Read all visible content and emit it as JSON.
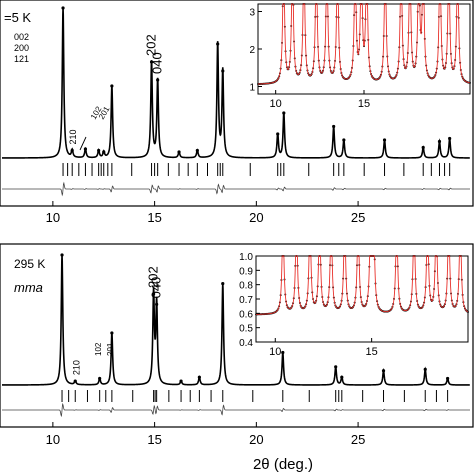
{
  "figure": {
    "xlabel": "2θ (deg.)"
  },
  "chart_data": [
    {
      "type": "line",
      "panel": "top",
      "temperature_label": "=5 K",
      "xlim": [
        7.5,
        30.5
      ],
      "x_ticks": [
        10,
        15,
        20,
        25
      ],
      "x_tick_labels": [
        "10",
        "15",
        "20",
        "25"
      ],
      "grid": false,
      "peaks": [
        {
          "x": 10.5,
          "h": 1.0,
          "label": "",
          "rot": false
        },
        {
          "x": 10.95,
          "h": 0.05,
          "label": "210",
          "rot": true
        },
        {
          "x": 11.6,
          "h": 0.06,
          "label": "",
          "rot": false
        },
        {
          "x": 12.25,
          "h": 0.05,
          "label": "",
          "rot": false
        },
        {
          "x": 12.5,
          "h": 0.04,
          "label": "",
          "rot": false
        },
        {
          "x": 12.9,
          "h": 0.48,
          "label": "",
          "rot": false
        },
        {
          "x": 14.85,
          "h": 0.64,
          "label": "202",
          "rot": true
        },
        {
          "x": 15.15,
          "h": 0.52,
          "label": "040",
          "rot": true
        },
        {
          "x": 16.2,
          "h": 0.04,
          "label": "",
          "rot": false
        },
        {
          "x": 17.1,
          "h": 0.05,
          "label": "",
          "rot": false
        },
        {
          "x": 18.1,
          "h": 0.76,
          "label": "",
          "rot": false
        },
        {
          "x": 18.35,
          "h": 0.58,
          "label": "",
          "rot": false
        },
        {
          "x": 21.05,
          "h": 0.16,
          "label": "",
          "rot": false
        },
        {
          "x": 21.35,
          "h": 0.3,
          "label": "",
          "rot": false
        },
        {
          "x": 23.8,
          "h": 0.21,
          "label": "",
          "rot": false
        },
        {
          "x": 24.3,
          "h": 0.12,
          "label": "",
          "rot": false
        },
        {
          "x": 26.3,
          "h": 0.12,
          "label": "",
          "rot": false
        },
        {
          "x": 28.2,
          "h": 0.07,
          "label": "",
          "rot": false
        },
        {
          "x": 29.0,
          "h": 0.11,
          "label": "",
          "rot": false
        },
        {
          "x": 29.5,
          "h": 0.13,
          "label": "",
          "rot": false
        }
      ],
      "stacked_label": [
        "002",
        "200",
        "121"
      ],
      "arrow_label": [
        "102",
        "201"
      ],
      "arrow_target_x": 11.6,
      "inset": {
        "xlim": [
          9,
          21
        ],
        "ylim": [
          0.8,
          3.2
        ],
        "x_ticks": [
          10,
          15
        ],
        "x_tick_labels": [
          "10",
          "15"
        ],
        "y_ticks": [
          1,
          2,
          3
        ],
        "y_tick_labels": [
          "1",
          "2",
          "3"
        ],
        "baseline": 1.05,
        "peaks": [
          10.45,
          10.95,
          11.6,
          12.3,
          12.9,
          13.5,
          14.5,
          14.85,
          15.15,
          16.2,
          17.1,
          17.6,
          18.1,
          18.35,
          19.3,
          19.8,
          20.3
        ],
        "colors": {
          "obs": "#111111",
          "calc": "#e8302a"
        }
      }
    },
    {
      "type": "line",
      "panel": "bottom",
      "temperature_label": "295 K",
      "space_group_label": "mma",
      "xlim": [
        7.5,
        30.5
      ],
      "x_ticks": [
        10,
        15,
        20,
        25
      ],
      "x_tick_labels": [
        "10",
        "15",
        "20",
        "25"
      ],
      "grid": false,
      "peaks": [
        {
          "x": 10.45,
          "h": 1.0,
          "label": "",
          "rot": false
        },
        {
          "x": 11.1,
          "h": 0.03,
          "label": "210",
          "rot": true
        },
        {
          "x": 12.3,
          "h": 0.05,
          "label": "",
          "rot": false
        },
        {
          "x": 12.9,
          "h": 0.4,
          "label": "",
          "rot": false
        },
        {
          "x": 14.95,
          "h": 0.7,
          "label": "202",
          "rot": true
        },
        {
          "x": 15.1,
          "h": 0.62,
          "label": "040",
          "rot": true
        },
        {
          "x": 16.3,
          "h": 0.03,
          "label": "",
          "rot": false
        },
        {
          "x": 17.2,
          "h": 0.06,
          "label": "",
          "rot": false
        },
        {
          "x": 18.35,
          "h": 0.78,
          "label": "",
          "rot": false
        },
        {
          "x": 21.3,
          "h": 0.25,
          "label": "",
          "rot": false
        },
        {
          "x": 23.9,
          "h": 0.14,
          "label": "",
          "rot": false
        },
        {
          "x": 24.2,
          "h": 0.06,
          "label": "",
          "rot": false
        },
        {
          "x": 26.25,
          "h": 0.11,
          "label": "",
          "rot": false
        },
        {
          "x": 28.3,
          "h": 0.12,
          "label": "",
          "rot": false
        },
        {
          "x": 29.4,
          "h": 0.05,
          "label": "",
          "rot": false
        }
      ],
      "side_label": [
        "102",
        "201"
      ],
      "inset": {
        "xlim": [
          9,
          20
        ],
        "ylim": [
          0.4,
          1.0
        ],
        "x_ticks": [
          10,
          15
        ],
        "x_tick_labels": [
          "10",
          "15"
        ],
        "y_ticks": [
          0.4,
          0.5,
          0.6,
          0.7,
          0.8,
          0.9,
          1.0
        ],
        "y_tick_labels": [
          "0.4",
          "0.5",
          "0.6",
          "0.7",
          "0.8",
          "0.9",
          "1.0"
        ],
        "baseline": 0.59,
        "peaks": [
          10.4,
          11.1,
          11.8,
          12.3,
          12.9,
          13.6,
          14.3,
          14.95,
          15.1,
          16.3,
          17.2,
          17.9,
          18.35,
          19.0,
          19.6
        ],
        "colors": {
          "obs": "#111111",
          "calc": "#e8302a"
        }
      }
    }
  ]
}
